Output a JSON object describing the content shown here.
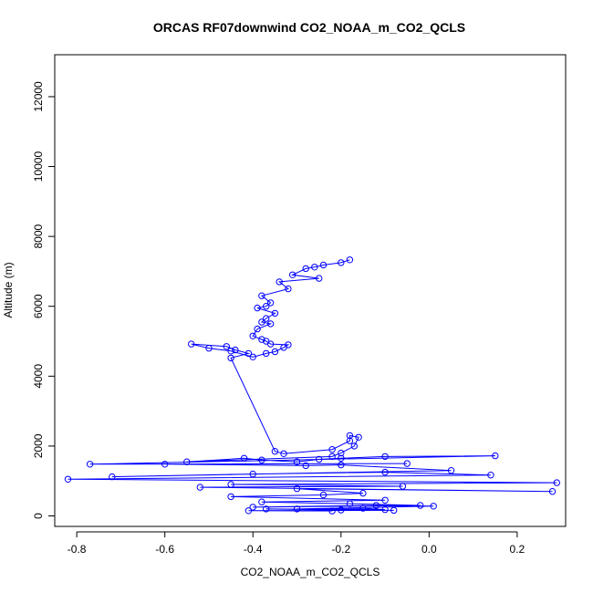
{
  "chart_data": {
    "type": "line",
    "title": "ORCAS RF07downwind CO2_NOAA_m_CO2_QCLS",
    "xlabel": "CO2_NOAA_m_CO2_QCLS",
    "ylabel": "Altitude (m)",
    "xlim": [
      -0.85,
      0.31
    ],
    "ylim": [
      -300,
      13200
    ],
    "x_ticks": [
      -0.8,
      -0.6,
      -0.4,
      -0.2,
      0.0,
      0.2
    ],
    "x_tick_labels": [
      "-0.8",
      "-0.6",
      "-0.4",
      "-0.2",
      "0.0",
      "0.2"
    ],
    "y_ticks": [
      0,
      2000,
      4000,
      6000,
      8000,
      10000,
      12000
    ],
    "y_tick_labels": [
      "0",
      "2000",
      "4000",
      "6000",
      "8000",
      "10000",
      "12000"
    ],
    "grid": false,
    "legend": "none",
    "series": [
      {
        "color": "#0000ff",
        "marker": "open-circle",
        "x": [
          -0.18,
          -0.2,
          -0.24,
          -0.26,
          -0.28,
          -0.31,
          -0.25,
          -0.34,
          -0.32,
          -0.38,
          -0.36,
          -0.37,
          -0.39,
          -0.35,
          -0.37,
          -0.38,
          -0.36,
          -0.39,
          -0.4,
          -0.38,
          -0.37,
          -0.36,
          -0.32,
          -0.33,
          -0.35,
          -0.37,
          -0.4,
          -0.45,
          -0.5,
          -0.54,
          -0.46,
          -0.44,
          -0.41,
          -0.45,
          -0.35,
          -0.33,
          -0.22,
          -0.18,
          -0.18,
          -0.16,
          -0.17,
          -0.2,
          -0.22,
          -0.55,
          -0.42,
          -0.38,
          -0.3,
          -0.25,
          -0.2,
          -0.1,
          0.15,
          -0.77,
          -0.05,
          -0.6,
          -0.28,
          -0.2,
          0.05,
          -0.72,
          -0.4,
          -0.1,
          0.14,
          -0.82,
          0.29,
          -0.45,
          -0.06,
          -0.52,
          0.28,
          -0.3,
          -0.15,
          -0.24,
          -0.45,
          -0.1,
          -0.38,
          -0.18,
          -0.02,
          -0.4,
          -0.12,
          0.01,
          -0.3,
          -0.15,
          -0.1,
          -0.37,
          -0.2,
          -0.08,
          -0.41,
          -0.22
        ],
        "y": [
          7330,
          7250,
          7180,
          7120,
          7080,
          6900,
          6800,
          6700,
          6500,
          6300,
          6100,
          6000,
          5950,
          5800,
          5650,
          5550,
          5500,
          5350,
          5150,
          5050,
          5000,
          4920,
          4900,
          4820,
          4700,
          4650,
          4550,
          4720,
          4800,
          4920,
          4850,
          4750,
          4650,
          4520,
          1850,
          1780,
          1900,
          2150,
          2300,
          2250,
          2000,
          1800,
          1700,
          1550,
          1650,
          1600,
          1550,
          1620,
          1650,
          1700,
          1720,
          1480,
          1500,
          1480,
          1440,
          1460,
          1300,
          1120,
          1200,
          1250,
          1170,
          1050,
          950,
          900,
          850,
          820,
          700,
          780,
          650,
          600,
          550,
          450,
          400,
          350,
          300,
          250,
          300,
          280,
          200,
          220,
          180,
          200,
          170,
          160,
          150,
          140
        ]
      }
    ]
  }
}
